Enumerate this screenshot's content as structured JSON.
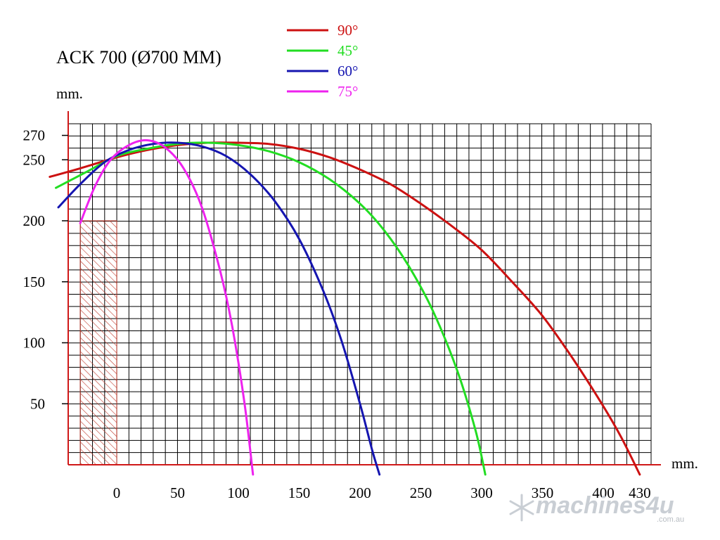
{
  "chart_data": {
    "type": "line",
    "title": "ACK 700 (Ø700 MM)",
    "ylabel": "mm.",
    "xlabel": "mm.",
    "x_ticks": [
      0,
      50,
      100,
      150,
      200,
      250,
      300,
      350,
      400,
      430
    ],
    "y_ticks": [
      50,
      100,
      150,
      200,
      250,
      270
    ],
    "xlim": [
      -40,
      440
    ],
    "ylim": [
      0,
      280
    ],
    "grid": true,
    "hatched_region": {
      "x": [
        -30,
        0
      ],
      "y": [
        0,
        200
      ]
    },
    "series": [
      {
        "name": "90°",
        "color": "#cc1111",
        "x": [
          -55,
          -30,
          0,
          25,
          50,
          75,
          100,
          125,
          150,
          175,
          200,
          225,
          250,
          275,
          300,
          325,
          350,
          375,
          400,
          415,
          430
        ],
        "y": [
          236,
          243,
          252,
          258,
          262,
          264,
          264,
          263,
          259,
          252,
          242,
          230,
          214,
          196,
          176,
          150,
          122,
          87,
          48,
          22,
          -8
        ]
      },
      {
        "name": "45°",
        "color": "#22dd22",
        "x": [
          -50,
          -25,
          0,
          25,
          50,
          75,
          100,
          125,
          150,
          175,
          200,
          220,
          240,
          260,
          280,
          295,
          303
        ],
        "y": [
          227,
          240,
          253,
          259,
          263,
          264,
          262,
          257,
          248,
          234,
          214,
          192,
          163,
          126,
          77,
          28,
          -8
        ]
      },
      {
        "name": "60°",
        "color": "#1515b0",
        "x": [
          -48,
          -30,
          -10,
          10,
          30,
          50,
          70,
          90,
          110,
          130,
          150,
          170,
          185,
          200,
          210,
          216
        ],
        "y": [
          211,
          230,
          248,
          258,
          263,
          264,
          261,
          253,
          238,
          216,
          185,
          142,
          101,
          50,
          12,
          -8
        ]
      },
      {
        "name": "75°",
        "color": "#ee22ee",
        "x": [
          -30,
          -18,
          -5,
          10,
          25,
          40,
          55,
          70,
          85,
          95,
          105,
          112
        ],
        "y": [
          198,
          228,
          250,
          262,
          266,
          260,
          243,
          211,
          159,
          113,
          51,
          -8
        ]
      }
    ],
    "legend_position": "top"
  },
  "watermark": {
    "brand": "machines4u",
    "domain": ".com.au"
  }
}
